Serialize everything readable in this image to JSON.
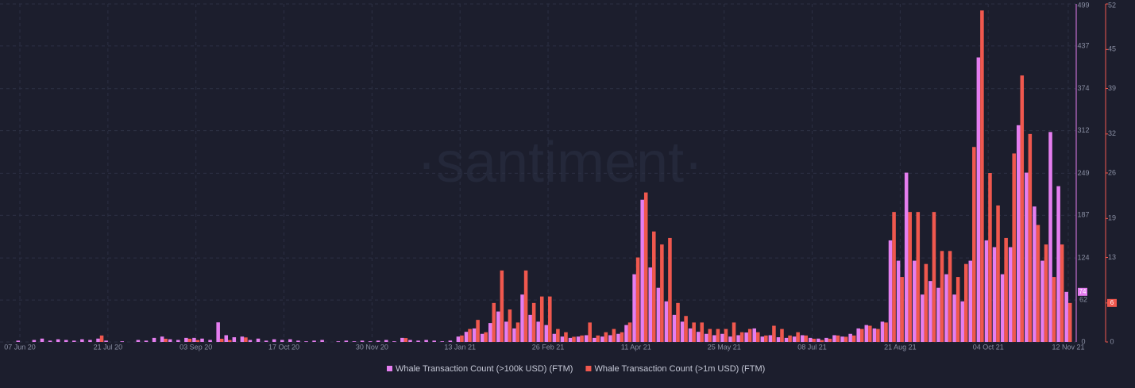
{
  "chart_data": {
    "type": "bar",
    "watermark": "·santiment·",
    "categories": [
      "07 Jun 20",
      null,
      null,
      null,
      null,
      null,
      null,
      null,
      null,
      null,
      null,
      "21 Jul 20",
      null,
      null,
      null,
      null,
      null,
      null,
      null,
      null,
      null,
      null,
      "03 Sep 20",
      null,
      null,
      null,
      null,
      null,
      null,
      null,
      null,
      null,
      null,
      "17 Oct 20",
      null,
      null,
      null,
      null,
      null,
      null,
      null,
      null,
      null,
      null,
      "30 Nov 20",
      null,
      null,
      null,
      null,
      null,
      null,
      null,
      null,
      null,
      null,
      "13 Jan 21",
      null,
      null,
      null,
      null,
      null,
      null,
      null,
      null,
      null,
      null,
      "26 Feb 21",
      null,
      null,
      null,
      null,
      null,
      null,
      null,
      null,
      null,
      null,
      "11 Apr 21",
      null,
      null,
      null,
      null,
      null,
      null,
      null,
      null,
      null,
      null,
      "25 May 21",
      null,
      null,
      null,
      null,
      null,
      null,
      null,
      null,
      null,
      null,
      "08 Jul 21",
      null,
      null,
      null,
      null,
      null,
      null,
      null,
      null,
      null,
      null,
      "21 Aug 21",
      null,
      null,
      null,
      null,
      null,
      null,
      null,
      null,
      null,
      null,
      "04 Oct 21",
      null,
      null,
      null,
      null,
      null,
      null,
      null,
      null,
      null,
      "12 Nov 21"
    ],
    "series": [
      {
        "name": "Whale Transaction Count (>100k USD) (FTM)",
        "color": "#e57ef0",
        "values": [
          2,
          0,
          3,
          5,
          2,
          4,
          3,
          2,
          4,
          3,
          5,
          2,
          0,
          1,
          0,
          3,
          2,
          6,
          8,
          4,
          3,
          6,
          6,
          5,
          3,
          29,
          10,
          7,
          8,
          3,
          5,
          2,
          4,
          3,
          4,
          2,
          1,
          2,
          3,
          0,
          1,
          2,
          1,
          2,
          1,
          2,
          3,
          1,
          6,
          3,
          2,
          3,
          2,
          1,
          2,
          8,
          15,
          20,
          12,
          28,
          45,
          30,
          20,
          70,
          40,
          30,
          25,
          12,
          8,
          6,
          8,
          10,
          6,
          8,
          10,
          12,
          25,
          100,
          210,
          110,
          80,
          60,
          40,
          30,
          20,
          15,
          12,
          10,
          12,
          8,
          10,
          14,
          20,
          8,
          10,
          7,
          6,
          8,
          10,
          6,
          5,
          6,
          10,
          8,
          12,
          20,
          25,
          20,
          30,
          150,
          120,
          250,
          120,
          70,
          90,
          80,
          100,
          70,
          60,
          120,
          420,
          150,
          140,
          100,
          140,
          320,
          250,
          200,
          120,
          310,
          230,
          74
        ]
      },
      {
        "name": "Whale Transaction Count (>1m USD) (FTM)",
        "color": "#f0584e",
        "axis": "y2",
        "values": [
          0,
          0,
          0,
          0,
          0,
          0,
          0,
          0,
          0,
          0,
          1,
          0,
          0,
          0,
          0,
          0,
          0,
          0,
          0.5,
          0,
          0,
          0.5,
          0.3,
          0,
          0,
          0.5,
          0.3,
          0,
          0.7,
          0,
          0,
          0,
          0,
          0,
          0,
          0,
          0,
          0,
          0,
          0,
          0,
          0,
          0,
          0,
          0,
          0,
          0,
          0,
          0.6,
          0,
          0,
          0,
          0,
          0,
          0,
          1,
          2,
          3.4,
          1.5,
          6,
          11,
          5,
          3,
          11,
          6,
          7,
          7,
          2,
          1.5,
          0.8,
          1,
          3,
          1,
          1.5,
          2,
          1.5,
          3,
          13,
          23,
          17,
          15,
          16,
          6,
          4,
          3,
          3,
          2,
          2,
          2,
          3,
          1.5,
          2,
          1.5,
          1,
          2.5,
          2,
          1,
          1.5,
          1,
          0.5,
          0.3,
          0.5,
          1,
          0.8,
          1,
          2,
          2.5,
          2,
          3,
          20,
          10,
          20,
          20,
          12,
          20,
          14,
          14,
          10,
          12,
          30,
          51,
          26,
          21,
          16,
          29,
          41,
          32,
          18,
          15,
          10,
          15,
          6
        ]
      }
    ],
    "ylim": [
      0,
      499
    ],
    "yticks": [
      0,
      62,
      124,
      187,
      249,
      312,
      374,
      437,
      499
    ],
    "y2lim": [
      0,
      52
    ],
    "y2ticks": [
      0,
      6,
      13,
      19,
      26,
      32,
      39,
      45,
      52
    ],
    "grid": true
  }
}
